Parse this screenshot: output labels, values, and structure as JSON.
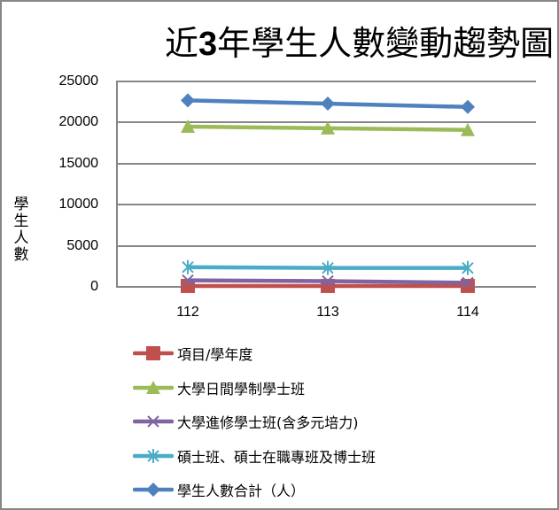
{
  "chart_data": {
    "type": "line",
    "title": "近3年學生人數變動趨勢圖",
    "title_parts": {
      "prefix": "近",
      "number": "3",
      "suffix": "年學生人數變動趨勢圖"
    },
    "xlabel": "",
    "ylabel": "學生人數",
    "ylabel_chars": [
      "學",
      "生",
      "人",
      "數"
    ],
    "categories": [
      "112",
      "113",
      "114"
    ],
    "ylim": [
      0,
      25000
    ],
    "yticks": [
      "25000",
      "20000",
      "15000",
      "10000",
      "5000",
      "0"
    ],
    "grid": true,
    "legend_position": "bottom",
    "series": [
      {
        "name": "項目/學年度",
        "values": [
          112,
          113,
          114
        ],
        "color": "#C0504D",
        "marker": "square"
      },
      {
        "name": "大學日間學制學士班",
        "values": [
          19500,
          19300,
          19100
        ],
        "color": "#9BBB59",
        "marker": "triangle"
      },
      {
        "name": "大學進修學士班(含多元培力)",
        "values": [
          800,
          700,
          500
        ],
        "color": "#8064A2",
        "marker": "x"
      },
      {
        "name": "碩士班、碩士在職專班及博士班",
        "values": [
          2400,
          2300,
          2300
        ],
        "color": "#4BACC6",
        "marker": "star"
      },
      {
        "name": "學生人數合計（人）",
        "values": [
          22700,
          22300,
          21900
        ],
        "color": "#4F81BD",
        "marker": "diamond"
      }
    ]
  },
  "colors": {
    "border": "#868686",
    "grid": "#868686",
    "axis": "#868686"
  }
}
